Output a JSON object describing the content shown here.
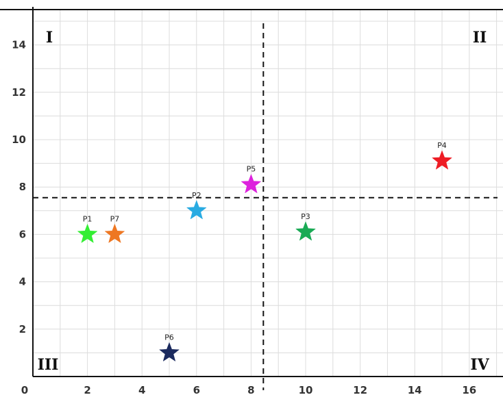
{
  "chart_data": {
    "type": "scatter",
    "title": "",
    "xlabel": "",
    "ylabel": "",
    "xlim": [
      0,
      17
    ],
    "ylim": [
      0,
      15
    ],
    "grid": true,
    "x_ticks": [
      0,
      2,
      4,
      6,
      8,
      10,
      12,
      14,
      16
    ],
    "y_ticks": [
      2,
      4,
      6,
      8,
      10,
      12,
      14
    ],
    "x_tick_labels": [
      "0",
      "2",
      "4",
      "6",
      "8",
      "10",
      "12",
      "14",
      "16"
    ],
    "y_tick_labels": [
      "2",
      "4",
      "6",
      "8",
      "10",
      "12",
      "14"
    ],
    "divider_x": 8.45,
    "divider_y": 7.55,
    "quadrants": [
      {
        "label": "I",
        "position": "top-left"
      },
      {
        "label": "II",
        "position": "top-right"
      },
      {
        "label": "III",
        "position": "bottom-left"
      },
      {
        "label": "IV",
        "position": "bottom-right"
      }
    ],
    "points": [
      {
        "label": "P1",
        "x": 2,
        "y": 6,
        "color": "#33ee33"
      },
      {
        "label": "P2",
        "x": 6,
        "y": 7,
        "color": "#29abe2"
      },
      {
        "label": "P3",
        "x": 10,
        "y": 6.1,
        "color": "#1aaa55"
      },
      {
        "label": "P4",
        "x": 15,
        "y": 9.1,
        "color": "#ee1c24"
      },
      {
        "label": "P5",
        "x": 8,
        "y": 8.1,
        "color": "#dd22dd"
      },
      {
        "label": "P6",
        "x": 5,
        "y": 1,
        "color": "#1b2a5e"
      },
      {
        "label": "P7",
        "x": 3,
        "y": 6,
        "color": "#ee7722"
      }
    ]
  }
}
